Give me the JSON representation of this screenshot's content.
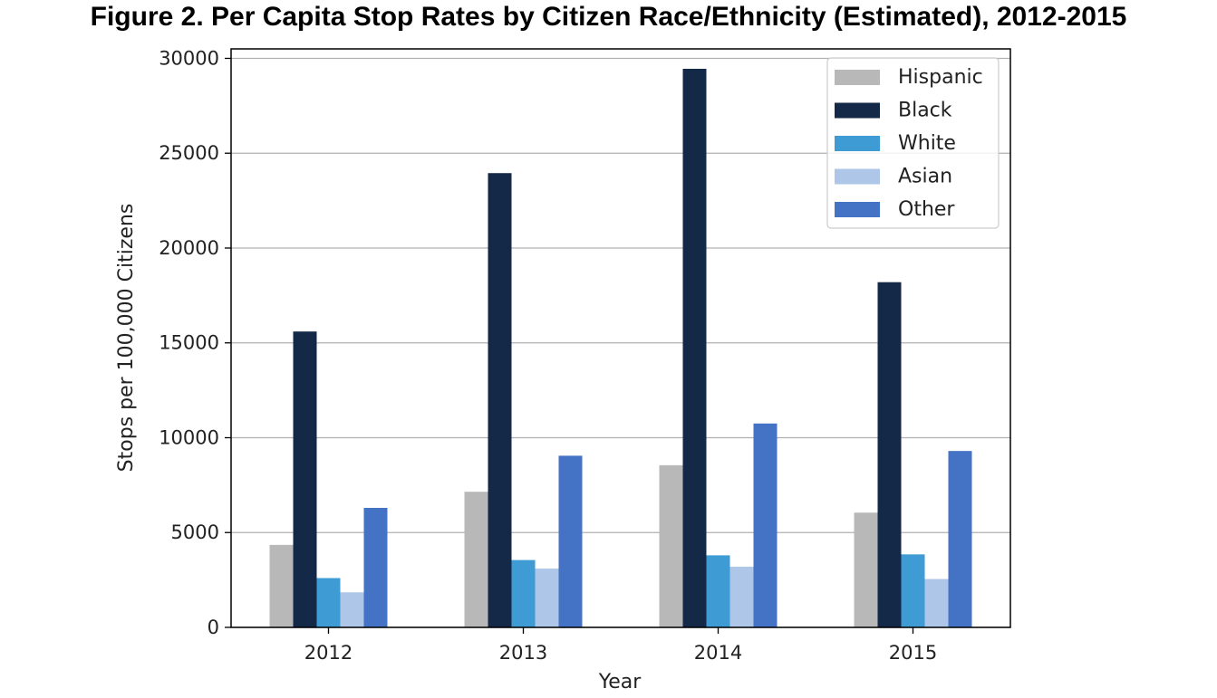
{
  "chart_data": {
    "type": "bar",
    "title": "Figure 2. Per Capita Stop Rates by Citizen Race/Ethnicity (Estimated), 2012-2015",
    "xlabel": "Year",
    "ylabel": "Stops per 100,000 Citizens",
    "categories": [
      "2012",
      "2013",
      "2014",
      "2015"
    ],
    "ylim": [
      0,
      30500
    ],
    "yticks": [
      0,
      5000,
      10000,
      15000,
      20000,
      25000,
      30000
    ],
    "grid": "horizontal",
    "legend_position": "top-right",
    "series": [
      {
        "name": "Hispanic",
        "color": "#b8b8b8",
        "values": [
          4350,
          7150,
          8550,
          6050
        ]
      },
      {
        "name": "Black",
        "color": "#142847",
        "values": [
          15600,
          23950,
          29450,
          18200
        ]
      },
      {
        "name": "White",
        "color": "#3e9bd4",
        "values": [
          2600,
          3550,
          3800,
          3850
        ]
      },
      {
        "name": "Asian",
        "color": "#aec6e8",
        "values": [
          1850,
          3100,
          3200,
          2550
        ]
      },
      {
        "name": "Other",
        "color": "#4472c4",
        "values": [
          6300,
          9050,
          10750,
          9300
        ]
      }
    ]
  }
}
